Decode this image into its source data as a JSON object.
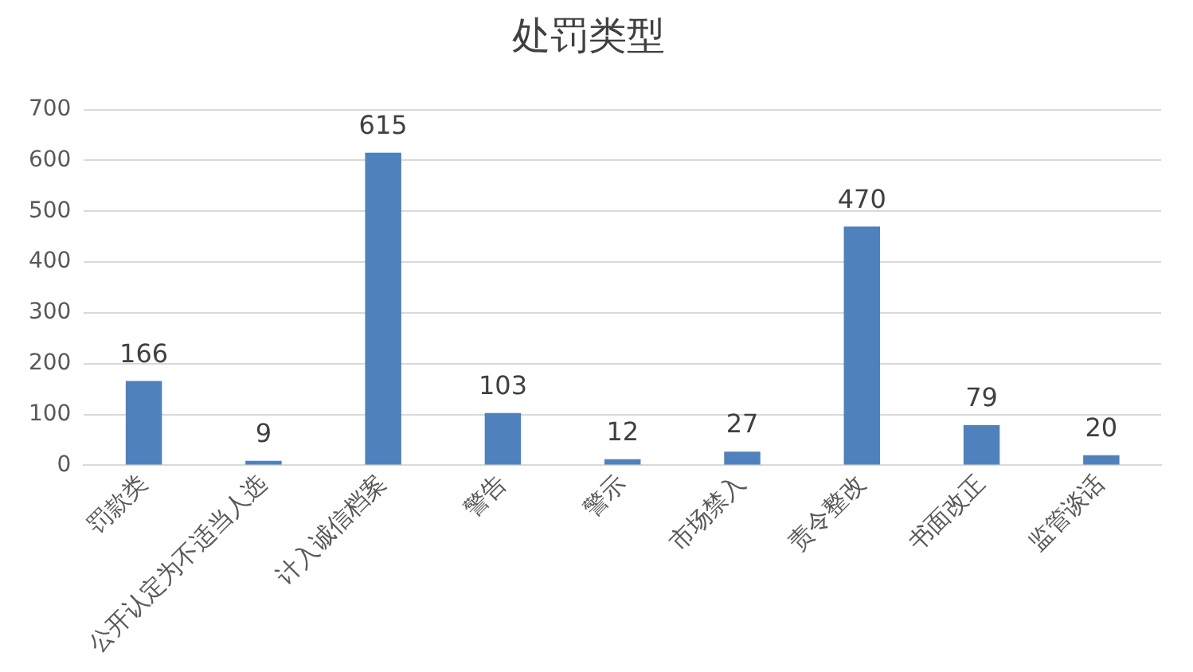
{
  "chart_data": {
    "type": "bar",
    "title": "处罚类型",
    "categories": [
      "罚款类",
      "公开认定为不适当人选",
      "计入诚信档案",
      "警告",
      "警示",
      "市场禁入",
      "责令整改",
      "书面改正",
      "监管谈话"
    ],
    "values": [
      166,
      9,
      615,
      103,
      12,
      27,
      470,
      79,
      20
    ],
    "color": "#4f81bd",
    "ylim": [
      0,
      700
    ],
    "yticks": [
      0,
      100,
      200,
      300,
      400,
      500,
      600,
      700
    ],
    "grid": "y",
    "data_labels": true
  }
}
